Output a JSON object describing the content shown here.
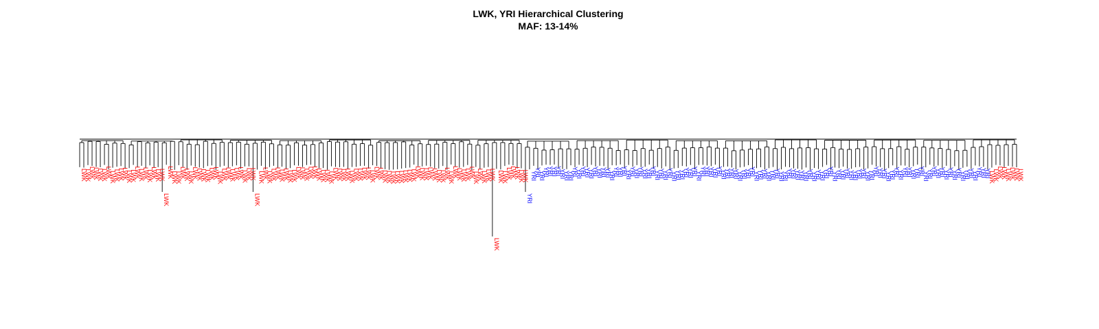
{
  "title": {
    "line1": "LWK, YRI Hierarchical Clustering",
    "line2": "MAF: 13-14%"
  },
  "colors": {
    "LWK": "#ff0000",
    "YRI": "#0000ff",
    "branch": "#000000",
    "background": "#ffffff"
  },
  "chart_data": {
    "type": "dendrogram",
    "orientation": "top-down",
    "leaf_label_rotation": "vertical",
    "populations": [
      "LWK",
      "YRI"
    ],
    "leaf_groups": [
      {
        "label": "LWK",
        "count": 108
      },
      {
        "label": "YRI",
        "count": 112
      },
      {
        "label": "LWK",
        "count": 8
      }
    ],
    "merge_heights": [
      0.0,
      0.03,
      0.18,
      0.26,
      0.42,
      0.55,
      0.9,
      1.0
    ]
  }
}
